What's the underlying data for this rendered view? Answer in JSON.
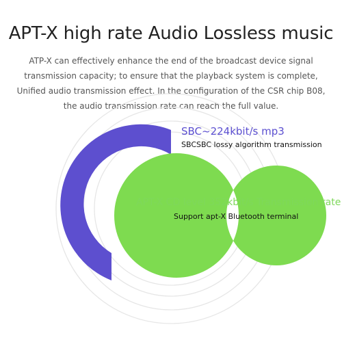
{
  "title": "APT-X high rate Audio Lossless music",
  "description": [
    "ATP-X can effectively enhance the end of the broadcast device signal",
    "transmission capacity; to ensure that the playback system is complete,",
    "Unified audio transmission effect. In the configuration of the CSR chip B08,",
    "the audio transmission rate can reach the full value."
  ],
  "sbc": {
    "heading": "SBC~224kbit/s mp3",
    "subtext": "SBCSBC lossy algorithm transmission"
  },
  "aptx": {
    "heading": "APT-X CD level 352kbit/s Transmission rate",
    "subtext": "Support apt-X Bluetooth terminal"
  },
  "colors": {
    "sbc_arc": "#5d4fcf",
    "aptx_ring": "#7edb50",
    "rings": "#e6e6e6",
    "title": "#222222"
  }
}
